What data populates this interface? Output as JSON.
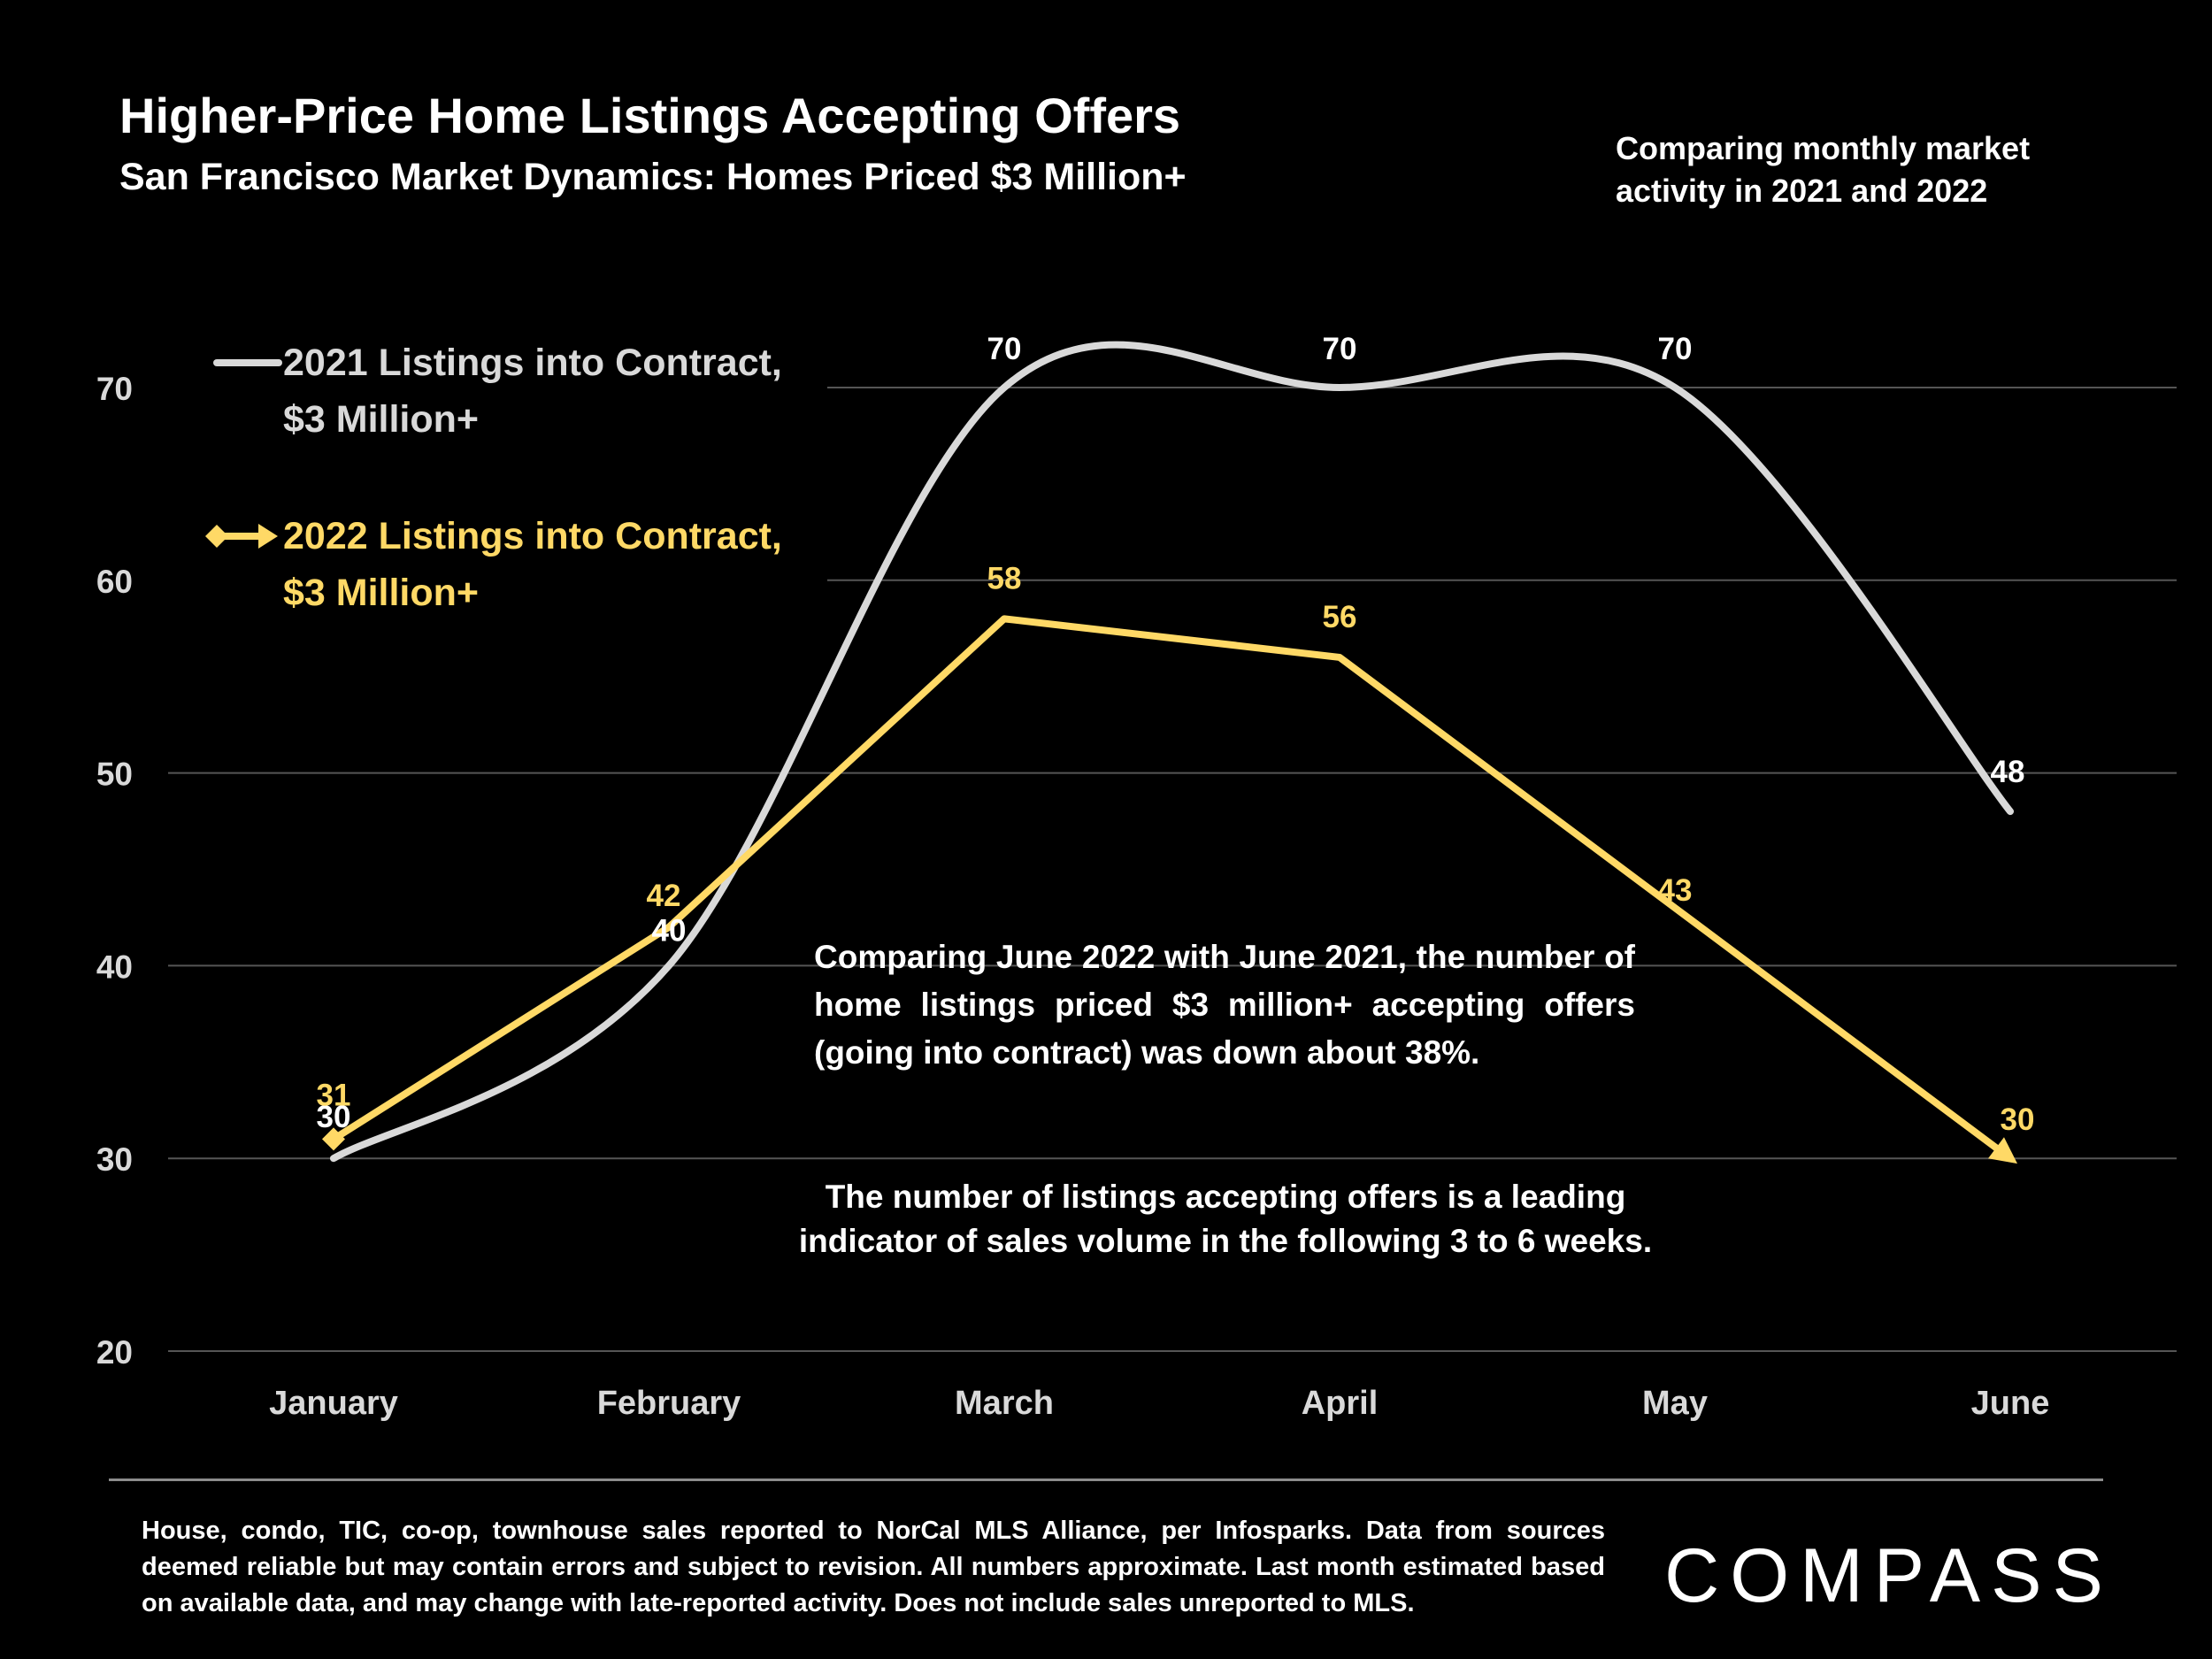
{
  "header": {
    "title": "Higher-Price Home Listings Accepting Offers",
    "subtitle": "San Francisco Market Dynamics: Homes Priced $3 Million+",
    "side_note": "Comparing monthly market activity in 2021 and 2022"
  },
  "chart_data": {
    "type": "line",
    "categories": [
      "January",
      "February",
      "March",
      "April",
      "May",
      "June"
    ],
    "series": [
      {
        "name": "2021 Listings into Contract, $3 Million+",
        "legend_line1": "2021 Listings into Contract,",
        "legend_line2": "$3 Million+",
        "values": [
          30,
          40,
          70,
          70,
          70,
          48
        ],
        "color": "#d9d9d9",
        "smooth": true
      },
      {
        "name": "2022 Listings into Contract, $3 Million+",
        "legend_line1": "2022 Listings into Contract,",
        "legend_line2": "$3 Million+",
        "values": [
          31,
          42,
          58,
          56,
          43,
          30
        ],
        "color": "#ffd966",
        "smooth": false
      }
    ],
    "y_ticks": [
      20,
      30,
      40,
      50,
      60,
      70
    ],
    "ylim": [
      20,
      70
    ],
    "grid": true,
    "legend_position": "top-left"
  },
  "annotations": {
    "paragraph1": "Comparing June 2022 with June 2021, the number of home listings priced $3 million+ accepting offers (going into contract) was down about 38%.",
    "paragraph2": "The number of listings accepting offers is a leading indicator of sales volume in the following 3 to 6 weeks."
  },
  "footer": {
    "note": "House, condo, TIC, co-op, townhouse sales reported to NorCal MLS Alliance, per Infosparks. Data from sources deemed reliable but may contain errors and subject to revision. All numbers approximate. Last month estimated based on available data, and may change with late-reported activity. Does not include sales unreported to MLS.",
    "logo_text": "COMPASS"
  }
}
